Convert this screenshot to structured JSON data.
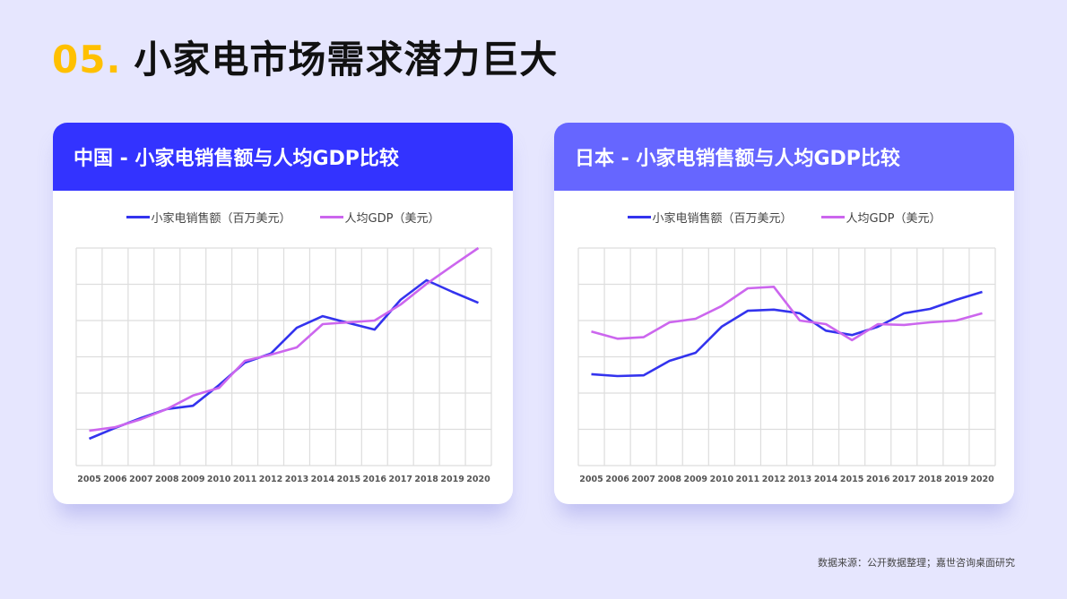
{
  "page": {
    "number": "05.",
    "title": "小家电市场需求潜力巨大",
    "source": "数据来源：公开数据整理；嘉世咨询桌面研究"
  },
  "colors": {
    "background": "#e6e6fe",
    "accent_number": "#ffc000",
    "china_header": "#3333ff",
    "japan_header": "#6666ff",
    "series_sales": "#3333ee",
    "series_gdp": "#cc66ee",
    "grid": "#dddddd"
  },
  "cards": {
    "china": {
      "title": "中国 - 小家电销售额与人均GDP比较",
      "legend": {
        "sales": "小家电销售额（百万美元）",
        "gdp": "人均GDP（美元）"
      }
    },
    "japan": {
      "title": "日本 - 小家电销售额与人均GDP比较",
      "legend": {
        "sales": "小家电销售额（百万美元）",
        "gdp": "人均GDP（美元）"
      }
    }
  },
  "chart_data": [
    {
      "type": "line",
      "title": "中国 - 小家电销售额与人均GDP比较",
      "xlabel": "",
      "ylabel": "",
      "y_axis_note": "no y tick labels shown; values normalized to gridline units (6 bands)",
      "ylim": [
        0,
        6
      ],
      "grid": true,
      "legend_position": "top",
      "categories": [
        "2005",
        "2006",
        "2007",
        "2008",
        "2009",
        "2010",
        "2011",
        "2012",
        "2013",
        "2014",
        "2015",
        "2016",
        "2017",
        "2018",
        "2019",
        "2020"
      ],
      "series": [
        {
          "name": "小家电销售额（百万美元）",
          "color": "#3333ee",
          "values": [
            0.74,
            1.04,
            1.31,
            1.56,
            1.65,
            2.22,
            2.84,
            3.09,
            3.8,
            4.12,
            3.93,
            3.75,
            4.57,
            5.11,
            4.79,
            4.49
          ]
        },
        {
          "name": "人均GDP（美元）",
          "color": "#cc66ee",
          "values": [
            0.96,
            1.06,
            1.28,
            1.56,
            1.93,
            2.14,
            2.89,
            3.06,
            3.26,
            3.9,
            3.95,
            4.0,
            4.44,
            5.01,
            5.51,
            6.0
          ]
        }
      ]
    },
    {
      "type": "line",
      "title": "日本 - 小家电销售额与人均GDP比较",
      "xlabel": "",
      "ylabel": "",
      "y_axis_note": "no y tick labels shown; values normalized to gridline units (6 bands)",
      "ylim": [
        0,
        6
      ],
      "grid": true,
      "legend_position": "top",
      "categories": [
        "2005",
        "2006",
        "2007",
        "2008",
        "2009",
        "2010",
        "2011",
        "2012",
        "2013",
        "2014",
        "2015",
        "2016",
        "2017",
        "2018",
        "2019",
        "2020"
      ],
      "series": [
        {
          "name": "小家电销售额（百万美元）",
          "color": "#3333ee",
          "values": [
            2.52,
            2.47,
            2.49,
            2.89,
            3.11,
            3.83,
            4.27,
            4.3,
            4.2,
            3.72,
            3.6,
            3.83,
            4.2,
            4.32,
            4.57,
            4.79
          ]
        },
        {
          "name": "人均GDP（美元）",
          "color": "#cc66ee",
          "values": [
            3.7,
            3.5,
            3.54,
            3.95,
            4.05,
            4.4,
            4.89,
            4.93,
            4.0,
            3.9,
            3.46,
            3.9,
            3.88,
            3.95,
            4.0,
            4.2
          ]
        }
      ]
    }
  ]
}
